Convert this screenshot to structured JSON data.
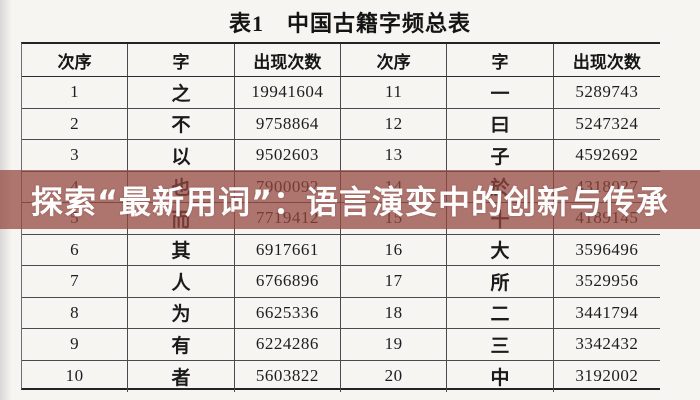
{
  "title": "表1　中国古籍字频总表",
  "banner": {
    "text": "探索“最新用词”：语言演变中的创新与传承",
    "bg_color": "#94463F",
    "text_color": "#FFFFFF"
  },
  "chart_data": {
    "type": "table",
    "title": "表1 中国古籍字频总表",
    "columns": [
      "次序",
      "字",
      "出现次数",
      "次序",
      "字",
      "出现次数"
    ],
    "rows": [
      [
        "1",
        "之",
        "19941604",
        "11",
        "一",
        "5289743"
      ],
      [
        "2",
        "不",
        "9758864",
        "12",
        "曰",
        "5247324"
      ],
      [
        "3",
        "以",
        "9502603",
        "13",
        "子",
        "4592692"
      ],
      [
        "4",
        "也",
        "7900092",
        "14",
        "於",
        "4318027"
      ],
      [
        "5",
        "而",
        "7719412",
        "15",
        "十",
        "4189145"
      ],
      [
        "6",
        "其",
        "6917661",
        "16",
        "大",
        "3596496"
      ],
      [
        "7",
        "人",
        "6766896",
        "17",
        "所",
        "3529956"
      ],
      [
        "8",
        "为",
        "6625336",
        "18",
        "二",
        "3441794"
      ],
      [
        "9",
        "有",
        "6224286",
        "19",
        "三",
        "3342432"
      ],
      [
        "10",
        "者",
        "5603822",
        "20",
        "中",
        "3192002"
      ]
    ]
  },
  "colors": {
    "page_bg": "#F6F5F2",
    "table_line_thin": "#4A4A4A",
    "table_line_thick": "#232323",
    "text": "#1D1D1D"
  }
}
